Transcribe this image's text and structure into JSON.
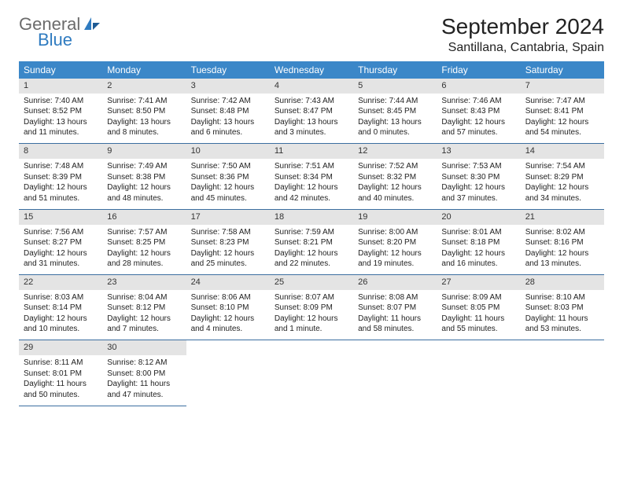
{
  "brand": {
    "part1": "General",
    "part2": "Blue"
  },
  "title": "September 2024",
  "location": "Santillana, Cantabria, Spain",
  "colors": {
    "header_bg": "#3b87c8",
    "header_fg": "#ffffff",
    "daynum_bg": "#e4e4e4",
    "row_divider": "#3b6ea0",
    "brand_gray": "#6b6b6b",
    "brand_blue": "#2f7bc0",
    "page_bg": "#ffffff",
    "text": "#222222"
  },
  "weekdays": [
    "Sunday",
    "Monday",
    "Tuesday",
    "Wednesday",
    "Thursday",
    "Friday",
    "Saturday"
  ],
  "weeks": [
    {
      "nums": [
        "1",
        "2",
        "3",
        "4",
        "5",
        "6",
        "7"
      ],
      "cells": [
        {
          "sunrise": "Sunrise: 7:40 AM",
          "sunset": "Sunset: 8:52 PM",
          "d1": "Daylight: 13 hours",
          "d2": "and 11 minutes."
        },
        {
          "sunrise": "Sunrise: 7:41 AM",
          "sunset": "Sunset: 8:50 PM",
          "d1": "Daylight: 13 hours",
          "d2": "and 8 minutes."
        },
        {
          "sunrise": "Sunrise: 7:42 AM",
          "sunset": "Sunset: 8:48 PM",
          "d1": "Daylight: 13 hours",
          "d2": "and 6 minutes."
        },
        {
          "sunrise": "Sunrise: 7:43 AM",
          "sunset": "Sunset: 8:47 PM",
          "d1": "Daylight: 13 hours",
          "d2": "and 3 minutes."
        },
        {
          "sunrise": "Sunrise: 7:44 AM",
          "sunset": "Sunset: 8:45 PM",
          "d1": "Daylight: 13 hours",
          "d2": "and 0 minutes."
        },
        {
          "sunrise": "Sunrise: 7:46 AM",
          "sunset": "Sunset: 8:43 PM",
          "d1": "Daylight: 12 hours",
          "d2": "and 57 minutes."
        },
        {
          "sunrise": "Sunrise: 7:47 AM",
          "sunset": "Sunset: 8:41 PM",
          "d1": "Daylight: 12 hours",
          "d2": "and 54 minutes."
        }
      ]
    },
    {
      "nums": [
        "8",
        "9",
        "10",
        "11",
        "12",
        "13",
        "14"
      ],
      "cells": [
        {
          "sunrise": "Sunrise: 7:48 AM",
          "sunset": "Sunset: 8:39 PM",
          "d1": "Daylight: 12 hours",
          "d2": "and 51 minutes."
        },
        {
          "sunrise": "Sunrise: 7:49 AM",
          "sunset": "Sunset: 8:38 PM",
          "d1": "Daylight: 12 hours",
          "d2": "and 48 minutes."
        },
        {
          "sunrise": "Sunrise: 7:50 AM",
          "sunset": "Sunset: 8:36 PM",
          "d1": "Daylight: 12 hours",
          "d2": "and 45 minutes."
        },
        {
          "sunrise": "Sunrise: 7:51 AM",
          "sunset": "Sunset: 8:34 PM",
          "d1": "Daylight: 12 hours",
          "d2": "and 42 minutes."
        },
        {
          "sunrise": "Sunrise: 7:52 AM",
          "sunset": "Sunset: 8:32 PM",
          "d1": "Daylight: 12 hours",
          "d2": "and 40 minutes."
        },
        {
          "sunrise": "Sunrise: 7:53 AM",
          "sunset": "Sunset: 8:30 PM",
          "d1": "Daylight: 12 hours",
          "d2": "and 37 minutes."
        },
        {
          "sunrise": "Sunrise: 7:54 AM",
          "sunset": "Sunset: 8:29 PM",
          "d1": "Daylight: 12 hours",
          "d2": "and 34 minutes."
        }
      ]
    },
    {
      "nums": [
        "15",
        "16",
        "17",
        "18",
        "19",
        "20",
        "21"
      ],
      "cells": [
        {
          "sunrise": "Sunrise: 7:56 AM",
          "sunset": "Sunset: 8:27 PM",
          "d1": "Daylight: 12 hours",
          "d2": "and 31 minutes."
        },
        {
          "sunrise": "Sunrise: 7:57 AM",
          "sunset": "Sunset: 8:25 PM",
          "d1": "Daylight: 12 hours",
          "d2": "and 28 minutes."
        },
        {
          "sunrise": "Sunrise: 7:58 AM",
          "sunset": "Sunset: 8:23 PM",
          "d1": "Daylight: 12 hours",
          "d2": "and 25 minutes."
        },
        {
          "sunrise": "Sunrise: 7:59 AM",
          "sunset": "Sunset: 8:21 PM",
          "d1": "Daylight: 12 hours",
          "d2": "and 22 minutes."
        },
        {
          "sunrise": "Sunrise: 8:00 AM",
          "sunset": "Sunset: 8:20 PM",
          "d1": "Daylight: 12 hours",
          "d2": "and 19 minutes."
        },
        {
          "sunrise": "Sunrise: 8:01 AM",
          "sunset": "Sunset: 8:18 PM",
          "d1": "Daylight: 12 hours",
          "d2": "and 16 minutes."
        },
        {
          "sunrise": "Sunrise: 8:02 AM",
          "sunset": "Sunset: 8:16 PM",
          "d1": "Daylight: 12 hours",
          "d2": "and 13 minutes."
        }
      ]
    },
    {
      "nums": [
        "22",
        "23",
        "24",
        "25",
        "26",
        "27",
        "28"
      ],
      "cells": [
        {
          "sunrise": "Sunrise: 8:03 AM",
          "sunset": "Sunset: 8:14 PM",
          "d1": "Daylight: 12 hours",
          "d2": "and 10 minutes."
        },
        {
          "sunrise": "Sunrise: 8:04 AM",
          "sunset": "Sunset: 8:12 PM",
          "d1": "Daylight: 12 hours",
          "d2": "and 7 minutes."
        },
        {
          "sunrise": "Sunrise: 8:06 AM",
          "sunset": "Sunset: 8:10 PM",
          "d1": "Daylight: 12 hours",
          "d2": "and 4 minutes."
        },
        {
          "sunrise": "Sunrise: 8:07 AM",
          "sunset": "Sunset: 8:09 PM",
          "d1": "Daylight: 12 hours",
          "d2": "and 1 minute."
        },
        {
          "sunrise": "Sunrise: 8:08 AM",
          "sunset": "Sunset: 8:07 PM",
          "d1": "Daylight: 11 hours",
          "d2": "and 58 minutes."
        },
        {
          "sunrise": "Sunrise: 8:09 AM",
          "sunset": "Sunset: 8:05 PM",
          "d1": "Daylight: 11 hours",
          "d2": "and 55 minutes."
        },
        {
          "sunrise": "Sunrise: 8:10 AM",
          "sunset": "Sunset: 8:03 PM",
          "d1": "Daylight: 11 hours",
          "d2": "and 53 minutes."
        }
      ]
    },
    {
      "nums": [
        "29",
        "30",
        "",
        "",
        "",
        "",
        ""
      ],
      "cells": [
        {
          "sunrise": "Sunrise: 8:11 AM",
          "sunset": "Sunset: 8:01 PM",
          "d1": "Daylight: 11 hours",
          "d2": "and 50 minutes."
        },
        {
          "sunrise": "Sunrise: 8:12 AM",
          "sunset": "Sunset: 8:00 PM",
          "d1": "Daylight: 11 hours",
          "d2": "and 47 minutes."
        },
        null,
        null,
        null,
        null,
        null
      ]
    }
  ]
}
